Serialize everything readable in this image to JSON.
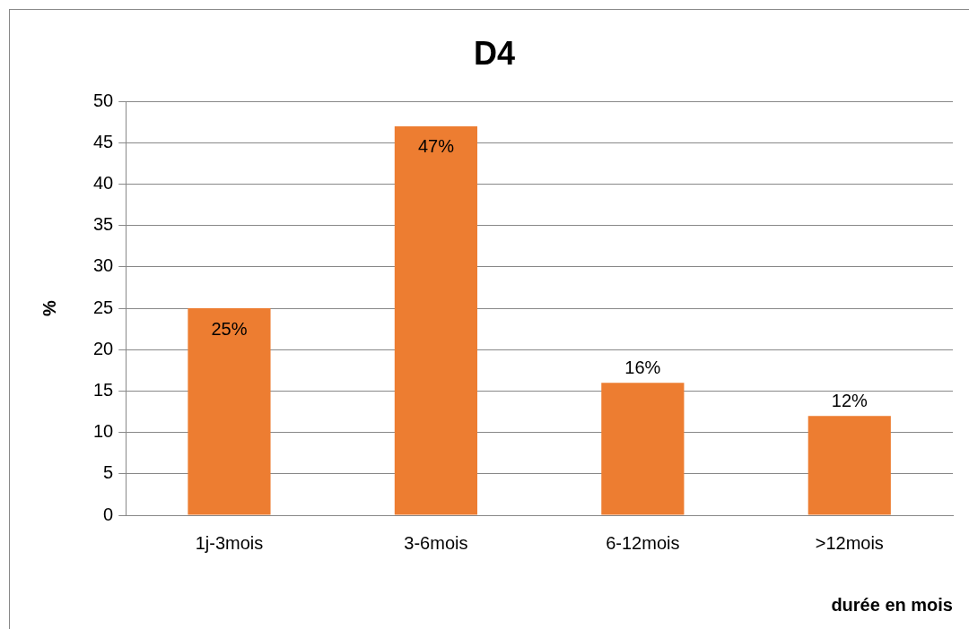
{
  "chart_data": {
    "type": "bar",
    "title": "D4",
    "xlabel": "durée en mois",
    "ylabel": "%",
    "categories": [
      "1j-3mois",
      "3-6mois",
      "6-12mois",
      ">12mois"
    ],
    "values": [
      25,
      47,
      16,
      12
    ],
    "color": "#ed7d31",
    "value_labels": [
      "25%",
      "47%",
      "16%",
      "12%"
    ],
    "ylim": [
      0,
      50
    ],
    "yticks": [
      0,
      5,
      10,
      15,
      20,
      25,
      30,
      35,
      40,
      45,
      50
    ],
    "grid": "y",
    "legend": false
  }
}
